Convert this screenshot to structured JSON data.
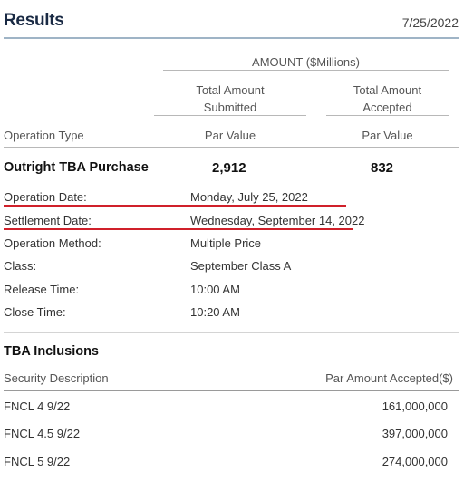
{
  "header": {
    "title": "Results",
    "date": "7/25/2022"
  },
  "amount_group_label": "AMOUNT ($Millions)",
  "columns": {
    "submitted_line1": "Total Amount",
    "submitted_line2": "Submitted",
    "accepted_line1": "Total Amount",
    "accepted_line2": "Accepted"
  },
  "subheader": {
    "operation_type": "Operation Type",
    "par_value_submitted": "Par Value",
    "par_value_accepted": "Par Value"
  },
  "operation": {
    "type": "Outright TBA Purchase",
    "submitted": "2,912",
    "accepted": "832"
  },
  "details": [
    {
      "label": "Operation Date:",
      "value": "Monday, July 25, 2022"
    },
    {
      "label": "Settlement Date:",
      "value": "Wednesday, September 14, 2022"
    },
    {
      "label": "Operation Method:",
      "value": "Multiple Price"
    },
    {
      "label": "Class:",
      "value": "September Class A"
    },
    {
      "label": "Release Time:",
      "value": "10:00 AM"
    },
    {
      "label": "Close Time:",
      "value": "10:20 AM"
    }
  ],
  "highlight_color": "#d0202a",
  "inclusions": {
    "title": "TBA Inclusions",
    "col_security": "Security Description",
    "col_amount": "Par Amount Accepted($)",
    "rows": [
      {
        "security": "FNCL 4 9/22",
        "amount": "161,000,000"
      },
      {
        "security": "FNCL 4.5 9/22",
        "amount": "397,000,000"
      },
      {
        "security": "FNCL 5 9/22",
        "amount": "274,000,000"
      }
    ]
  }
}
